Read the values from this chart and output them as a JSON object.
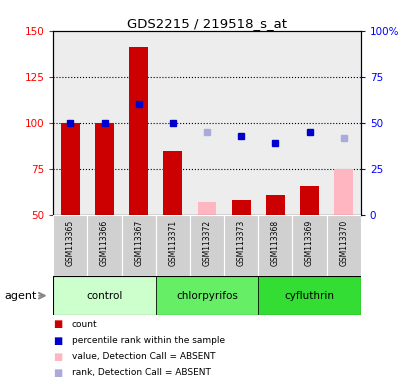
{
  "title": "GDS2215 / 219518_s_at",
  "samples": [
    "GSM113365",
    "GSM113366",
    "GSM113367",
    "GSM113371",
    "GSM113372",
    "GSM113373",
    "GSM113368",
    "GSM113369",
    "GSM113370"
  ],
  "bar_values": [
    100,
    100,
    141,
    85,
    null,
    58,
    61,
    66,
    null
  ],
  "bar_absent_values": [
    null,
    null,
    null,
    null,
    57,
    null,
    null,
    null,
    75
  ],
  "rank_values": [
    100,
    100,
    110,
    100,
    null,
    93,
    89,
    95,
    null
  ],
  "rank_absent_values": [
    null,
    null,
    null,
    null,
    95,
    null,
    null,
    null,
    92
  ],
  "bar_color": "#CC0000",
  "bar_absent_color": "#FFB6C1",
  "rank_color": "#0000CC",
  "rank_absent_color": "#AAAADD",
  "ylim_left": [
    50,
    150
  ],
  "yticks_left": [
    50,
    75,
    100,
    125,
    150
  ],
  "ytick_labels_left": [
    "50",
    "75",
    "100",
    "125",
    "150"
  ],
  "ytick_labels_right": [
    "0",
    "25",
    "50",
    "75",
    "100%"
  ],
  "groups": [
    {
      "label": "control",
      "start": 0,
      "end": 2,
      "color": "#CCFFCC"
    },
    {
      "label": "chlorpyrifos",
      "start": 3,
      "end": 5,
      "color": "#66EE66"
    },
    {
      "label": "cyfluthrin",
      "start": 6,
      "end": 8,
      "color": "#33DD33"
    }
  ],
  "bar_bottom": 50,
  "legend_items": [
    {
      "color": "#CC0000",
      "label": "count"
    },
    {
      "color": "#0000CC",
      "label": "percentile rank within the sample"
    },
    {
      "color": "#FFB6C1",
      "label": "value, Detection Call = ABSENT"
    },
    {
      "color": "#AAAADD",
      "label": "rank, Detection Call = ABSENT"
    }
  ]
}
